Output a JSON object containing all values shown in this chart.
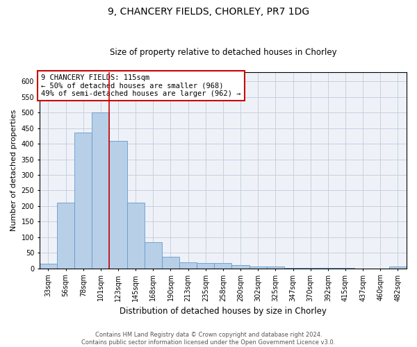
{
  "title1": "9, CHANCERY FIELDS, CHORLEY, PR7 1DG",
  "title2": "Size of property relative to detached houses in Chorley",
  "xlabel": "Distribution of detached houses by size in Chorley",
  "ylabel": "Number of detached properties",
  "categories": [
    "33sqm",
    "56sqm",
    "78sqm",
    "101sqm",
    "123sqm",
    "145sqm",
    "168sqm",
    "190sqm",
    "213sqm",
    "235sqm",
    "258sqm",
    "280sqm",
    "302sqm",
    "325sqm",
    "347sqm",
    "370sqm",
    "392sqm",
    "415sqm",
    "437sqm",
    "460sqm",
    "482sqm"
  ],
  "values": [
    15,
    210,
    435,
    500,
    410,
    210,
    85,
    37,
    20,
    16,
    16,
    10,
    5,
    5,
    1,
    1,
    1,
    1,
    0,
    0,
    5
  ],
  "bar_color": "#b8cfe8",
  "bar_edge_color": "#6699cc",
  "vline_x": 3.5,
  "vline_color": "#cc0000",
  "annotation_text": "9 CHANCERY FIELDS: 115sqm\n← 50% of detached houses are smaller (968)\n49% of semi-detached houses are larger (962) →",
  "annotation_box_color": "white",
  "annotation_box_edge_color": "#cc0000",
  "ylim": [
    0,
    630
  ],
  "yticks": [
    0,
    50,
    100,
    150,
    200,
    250,
    300,
    350,
    400,
    450,
    500,
    550,
    600
  ],
  "footer1": "Contains HM Land Registry data © Crown copyright and database right 2024.",
  "footer2": "Contains public sector information licensed under the Open Government Licence v3.0.",
  "bg_color": "#eef2f8",
  "grid_color": "#c5d0e0",
  "title1_fontsize": 10,
  "title2_fontsize": 8.5,
  "xlabel_fontsize": 8.5,
  "ylabel_fontsize": 8,
  "tick_fontsize": 7,
  "ann_fontsize": 7.5,
  "footer_fontsize": 6
}
